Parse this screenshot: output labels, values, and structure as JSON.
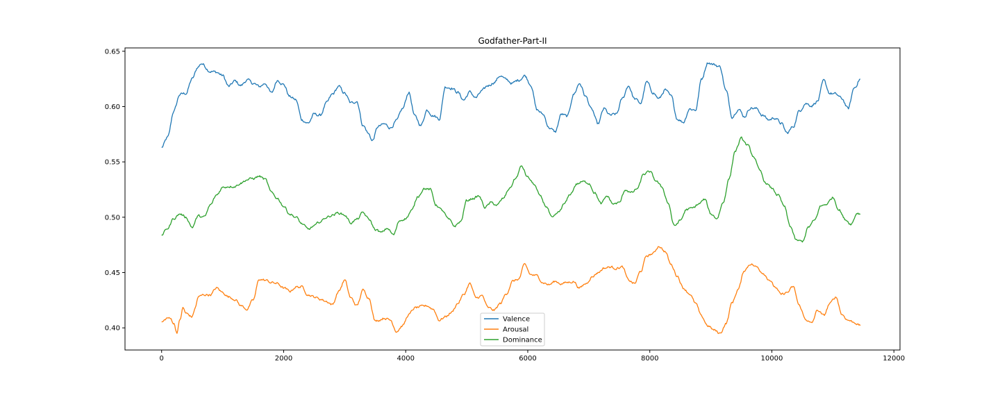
{
  "chart_data": {
    "type": "line",
    "title": "Godfather-Part-II",
    "xlabel": "",
    "ylabel": "",
    "xlim": [
      -600,
      12100
    ],
    "ylim": [
      0.38,
      0.653
    ],
    "x_ticks": [
      0,
      2000,
      4000,
      6000,
      8000,
      10000,
      12000
    ],
    "x_tick_labels": [
      "0",
      "2000",
      "4000",
      "6000",
      "8000",
      "10000",
      "12000"
    ],
    "y_ticks": [
      0.4,
      0.45,
      0.5,
      0.55,
      0.6,
      0.65
    ],
    "y_tick_labels": [
      "0.40",
      "0.45",
      "0.50",
      "0.55",
      "0.60",
      "0.65"
    ],
    "grid": false,
    "legend_position": "bottom-center",
    "series": [
      {
        "name": "Valence",
        "color": "#1f77b4",
        "x": [
          0,
          100,
          200,
          300,
          400,
          500,
          600,
          650,
          800,
          900,
          1000,
          1100,
          1200,
          1300,
          1400,
          1500,
          1600,
          1700,
          1800,
          1900,
          2000,
          2100,
          2200,
          2300,
          2400,
          2500,
          2600,
          2700,
          2800,
          2900,
          3000,
          3100,
          3200,
          3300,
          3400,
          3450,
          3550,
          3650,
          3750,
          3850,
          3950,
          4050,
          4150,
          4250,
          4350,
          4450,
          4550,
          4650,
          4750,
          4850,
          4950,
          5050,
          5150,
          5250,
          5350,
          5450,
          5550,
          5650,
          5750,
          5850,
          5950,
          6050,
          6150,
          6250,
          6350,
          6450,
          6550,
          6650,
          6750,
          6850,
          6950,
          7050,
          7150,
          7250,
          7350,
          7450,
          7550,
          7650,
          7750,
          7850,
          7950,
          8050,
          8150,
          8250,
          8350,
          8450,
          8550,
          8650,
          8750,
          8850,
          8950,
          9050,
          9150,
          9250,
          9350,
          9450,
          9550,
          9650,
          9750,
          9850,
          9950,
          10050,
          10150,
          10250,
          10350,
          10450,
          10550,
          10650,
          10750,
          10850,
          10950,
          11050,
          11150,
          11250,
          11350,
          11450
        ],
        "values": [
          0.563,
          0.572,
          0.596,
          0.611,
          0.612,
          0.625,
          0.636,
          0.639,
          0.632,
          0.631,
          0.628,
          0.618,
          0.623,
          0.619,
          0.624,
          0.621,
          0.618,
          0.621,
          0.612,
          0.624,
          0.62,
          0.609,
          0.606,
          0.588,
          0.585,
          0.593,
          0.592,
          0.603,
          0.611,
          0.618,
          0.612,
          0.603,
          0.605,
          0.583,
          0.575,
          0.569,
          0.582,
          0.584,
          0.581,
          0.587,
          0.598,
          0.613,
          0.591,
          0.583,
          0.597,
          0.592,
          0.589,
          0.618,
          0.617,
          0.613,
          0.606,
          0.613,
          0.608,
          0.614,
          0.619,
          0.622,
          0.628,
          0.624,
          0.621,
          0.624,
          0.628,
          0.62,
          0.597,
          0.593,
          0.581,
          0.577,
          0.593,
          0.591,
          0.611,
          0.621,
          0.609,
          0.597,
          0.584,
          0.598,
          0.592,
          0.593,
          0.607,
          0.619,
          0.607,
          0.603,
          0.622,
          0.613,
          0.607,
          0.615,
          0.609,
          0.589,
          0.586,
          0.598,
          0.597,
          0.625,
          0.64,
          0.638,
          0.636,
          0.614,
          0.591,
          0.598,
          0.591,
          0.599,
          0.598,
          0.592,
          0.588,
          0.59,
          0.585,
          0.576,
          0.582,
          0.596,
          0.603,
          0.601,
          0.605,
          0.623,
          0.612,
          0.611,
          0.607,
          0.598,
          0.617,
          0.625
        ],
        "noise": 0.0022
      },
      {
        "name": "Arousal",
        "color": "#ff7f0e",
        "x": [
          0,
          100,
          150,
          200,
          250,
          300,
          350,
          400,
          500,
          550,
          600,
          700,
          800,
          900,
          1000,
          1100,
          1200,
          1300,
          1400,
          1500,
          1600,
          1700,
          1800,
          1900,
          2000,
          2100,
          2200,
          2300,
          2400,
          2500,
          2600,
          2700,
          2800,
          2900,
          3000,
          3100,
          3200,
          3300,
          3400,
          3500,
          3550,
          3650,
          3750,
          3850,
          3950,
          4050,
          4150,
          4250,
          4350,
          4450,
          4550,
          4650,
          4750,
          4850,
          4950,
          5050,
          5150,
          5250,
          5350,
          5450,
          5550,
          5650,
          5750,
          5850,
          5950,
          6050,
          6150,
          6250,
          6350,
          6450,
          6550,
          6650,
          6750,
          6850,
          6950,
          7050,
          7150,
          7250,
          7350,
          7450,
          7550,
          7650,
          7750,
          7850,
          7950,
          8050,
          8150,
          8250,
          8350,
          8450,
          8550,
          8650,
          8750,
          8850,
          8950,
          9050,
          9150,
          9250,
          9350,
          9450,
          9550,
          9650,
          9750,
          9850,
          9950,
          10050,
          10150,
          10250,
          10350,
          10450,
          10550,
          10650,
          10750,
          10850,
          10950,
          11050,
          11150,
          11250,
          11350,
          11450
        ],
        "values": [
          0.405,
          0.409,
          0.408,
          0.404,
          0.396,
          0.407,
          0.418,
          0.413,
          0.41,
          0.418,
          0.428,
          0.43,
          0.43,
          0.436,
          0.432,
          0.428,
          0.426,
          0.42,
          0.417,
          0.425,
          0.444,
          0.443,
          0.441,
          0.44,
          0.436,
          0.433,
          0.437,
          0.437,
          0.43,
          0.428,
          0.426,
          0.424,
          0.421,
          0.433,
          0.443,
          0.427,
          0.42,
          0.434,
          0.427,
          0.406,
          0.407,
          0.409,
          0.407,
          0.397,
          0.402,
          0.412,
          0.418,
          0.419,
          0.42,
          0.417,
          0.407,
          0.41,
          0.414,
          0.422,
          0.43,
          0.44,
          0.427,
          0.429,
          0.418,
          0.416,
          0.422,
          0.431,
          0.442,
          0.444,
          0.457,
          0.448,
          0.447,
          0.441,
          0.439,
          0.442,
          0.44,
          0.441,
          0.442,
          0.436,
          0.44,
          0.446,
          0.45,
          0.454,
          0.455,
          0.454,
          0.455,
          0.443,
          0.44,
          0.451,
          0.465,
          0.467,
          0.474,
          0.469,
          0.457,
          0.447,
          0.436,
          0.431,
          0.422,
          0.41,
          0.402,
          0.398,
          0.395,
          0.404,
          0.423,
          0.435,
          0.452,
          0.458,
          0.455,
          0.45,
          0.444,
          0.437,
          0.43,
          0.432,
          0.437,
          0.42,
          0.408,
          0.404,
          0.416,
          0.411,
          0.422,
          0.428,
          0.412,
          0.407,
          0.405,
          0.402
        ],
        "noise": 0.0018
      },
      {
        "name": "Dominance",
        "color": "#2ca02c",
        "x": [
          0,
          100,
          200,
          300,
          400,
          500,
          600,
          700,
          800,
          900,
          1000,
          1100,
          1200,
          1300,
          1400,
          1500,
          1600,
          1700,
          1800,
          1900,
          2000,
          2100,
          2200,
          2300,
          2400,
          2500,
          2600,
          2700,
          2800,
          2900,
          3000,
          3100,
          3200,
          3300,
          3400,
          3500,
          3600,
          3700,
          3800,
          3900,
          4000,
          4100,
          4200,
          4300,
          4400,
          4500,
          4600,
          4700,
          4800,
          4900,
          5000,
          5100,
          5200,
          5300,
          5400,
          5500,
          5600,
          5700,
          5800,
          5900,
          6000,
          6100,
          6200,
          6300,
          6400,
          6500,
          6600,
          6700,
          6800,
          6900,
          7000,
          7100,
          7200,
          7300,
          7400,
          7500,
          7600,
          7700,
          7800,
          7900,
          8000,
          8100,
          8200,
          8300,
          8400,
          8500,
          8600,
          8700,
          8800,
          8900,
          9000,
          9100,
          9200,
          9300,
          9400,
          9500,
          9600,
          9700,
          9800,
          9900,
          10000,
          10100,
          10200,
          10300,
          10400,
          10500,
          10600,
          10700,
          10800,
          10900,
          11000,
          11100,
          11200,
          11300,
          11400,
          11450
        ],
        "values": [
          0.484,
          0.49,
          0.499,
          0.503,
          0.5,
          0.491,
          0.501,
          0.5,
          0.511,
          0.52,
          0.527,
          0.528,
          0.528,
          0.531,
          0.534,
          0.535,
          0.537,
          0.534,
          0.522,
          0.517,
          0.51,
          0.503,
          0.5,
          0.494,
          0.489,
          0.492,
          0.496,
          0.5,
          0.502,
          0.504,
          0.502,
          0.495,
          0.498,
          0.504,
          0.498,
          0.489,
          0.486,
          0.49,
          0.484,
          0.497,
          0.499,
          0.506,
          0.519,
          0.526,
          0.525,
          0.511,
          0.506,
          0.498,
          0.492,
          0.496,
          0.515,
          0.517,
          0.519,
          0.509,
          0.513,
          0.511,
          0.517,
          0.526,
          0.535,
          0.546,
          0.536,
          0.53,
          0.519,
          0.51,
          0.499,
          0.504,
          0.512,
          0.521,
          0.53,
          0.532,
          0.531,
          0.522,
          0.512,
          0.519,
          0.512,
          0.513,
          0.525,
          0.522,
          0.526,
          0.539,
          0.541,
          0.533,
          0.527,
          0.513,
          0.492,
          0.497,
          0.507,
          0.508,
          0.512,
          0.516,
          0.503,
          0.499,
          0.513,
          0.535,
          0.56,
          0.571,
          0.565,
          0.555,
          0.542,
          0.531,
          0.526,
          0.52,
          0.51,
          0.492,
          0.479,
          0.478,
          0.491,
          0.497,
          0.51,
          0.512,
          0.518,
          0.507,
          0.498,
          0.494,
          0.504,
          0.503
        ],
        "noise": 0.0018
      }
    ]
  }
}
